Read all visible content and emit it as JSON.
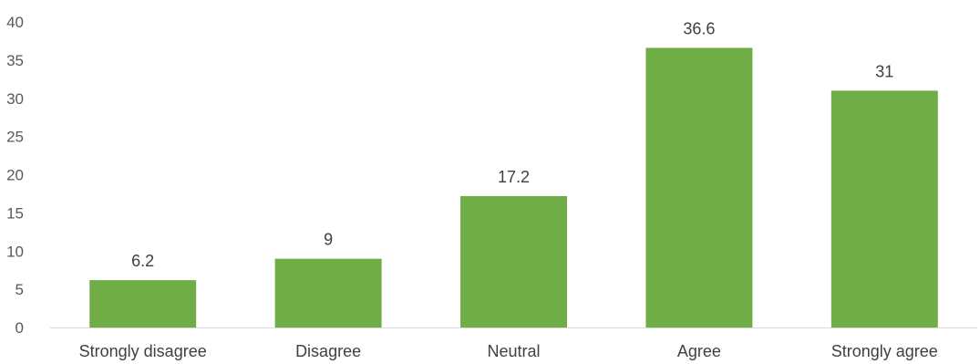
{
  "chart_data": {
    "type": "bar",
    "title": "",
    "xlabel": "",
    "ylabel": "",
    "categories": [
      "Strongly disagree",
      "Disagree",
      "Neutral",
      "Agree",
      "Strongly agree"
    ],
    "values": [
      6.2,
      9,
      17.2,
      36.6,
      31
    ],
    "data_labels": [
      "6.2",
      "9",
      "17.2",
      "36.6",
      "31"
    ],
    "ylim": [
      0,
      40
    ],
    "yticks": [
      0,
      5,
      10,
      15,
      20,
      25,
      30,
      35,
      40
    ],
    "ytick_labels": [
      "0",
      "5",
      "10",
      "15",
      "20",
      "25",
      "30",
      "35",
      "40"
    ],
    "grid": false,
    "legend": "none",
    "bar_color": "#70ad47",
    "axis_color": "#d9d9d9"
  }
}
